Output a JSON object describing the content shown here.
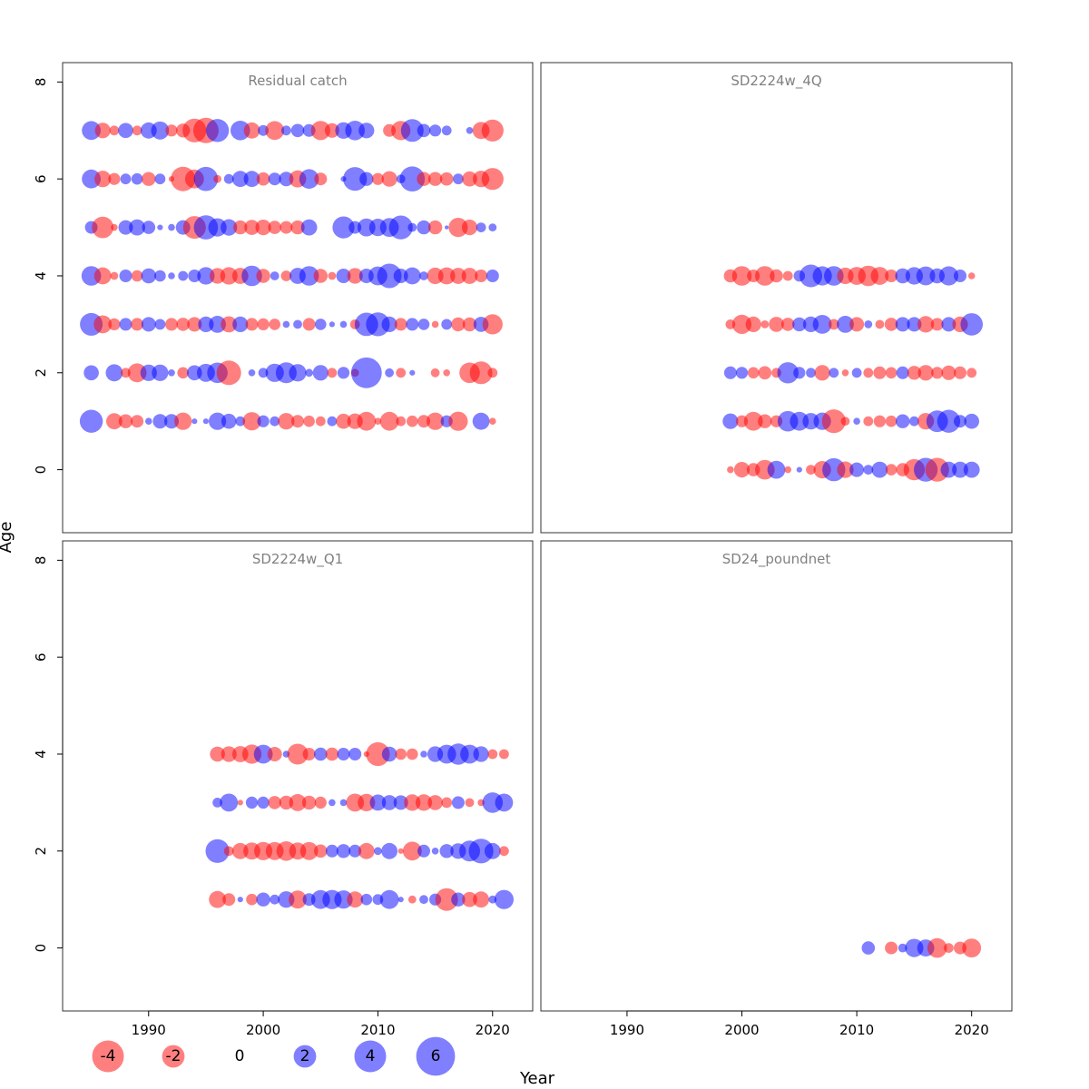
{
  "chart_data": {
    "type": "scatter",
    "subtype": "bubble",
    "xlabel": "Year",
    "ylabel": "Age",
    "xlim": [
      1982.5,
      2023.5
    ],
    "ylim": [
      -1.3,
      8.4
    ],
    "x_ticks": [
      "1990",
      "2000",
      "2010",
      "2020"
    ],
    "y_ticks": [
      "0",
      "2",
      "4",
      "6",
      "8"
    ],
    "colors": {
      "positive": "#0000ff",
      "negative": "#ff0000",
      "alpha": 0.5
    },
    "legend": {
      "placement": "bottom",
      "entries": [
        {
          "label": "-4",
          "value": -4
        },
        {
          "label": "-2",
          "value": -2
        },
        {
          "label": "0",
          "value": 0
        },
        {
          "label": "2",
          "value": 2
        },
        {
          "label": "4",
          "value": 4
        },
        {
          "label": "6",
          "value": 6
        }
      ]
    },
    "panels": [
      {
        "title": "Residual catch",
        "years": [
          1985,
          1986,
          1987,
          1988,
          1989,
          1990,
          1991,
          1992,
          1993,
          1994,
          1995,
          1996,
          1997,
          1998,
          1999,
          2000,
          2001,
          2002,
          2003,
          2004,
          2005,
          2006,
          2007,
          2008,
          2009,
          2010,
          2011,
          2012,
          2013,
          2014,
          2015,
          2016,
          2017,
          2018,
          2019,
          2020
        ],
        "ages": [
          {
            "age": 7,
            "values": [
              2.2,
              -1.5,
              -0.6,
              1.4,
              -0.6,
              1.6,
              2.0,
              -0.9,
              -1.2,
              -3.5,
              -4.0,
              3.3,
              0.0,
              2.4,
              -1.6,
              0.7,
              -2.2,
              0.6,
              1.1,
              1.0,
              -2.3,
              -1.3,
              1.7,
              2.4,
              1.5,
              0.0,
              -1.0,
              -2.3,
              3.2,
              1.1,
              0.9,
              0.6,
              0.0,
              0.3,
              -1.8,
              -3.0
            ]
          },
          {
            "age": 6,
            "values": [
              2.2,
              -1.7,
              -0.9,
              0.7,
              0.8,
              -1.2,
              0.7,
              -0.2,
              -3.7,
              -2.2,
              3.6,
              -0.4,
              0.6,
              1.6,
              1.6,
              -1.1,
              1.0,
              1.3,
              -1.8,
              2.4,
              -1.0,
              0.0,
              0.2,
              3.5,
              1.2,
              -0.9,
              -1.5,
              0.5,
              3.9,
              -1.2,
              -1.2,
              -1.1,
              0.7,
              -1.4,
              -1.7,
              -3.0
            ]
          },
          {
            "age": 5,
            "values": [
              1.0,
              -2.9,
              -0.3,
              1.3,
              1.6,
              1.1,
              0.2,
              0.3,
              1.3,
              -3.2,
              3.6,
              2.1,
              1.7,
              -1.2,
              -1.4,
              -1.5,
              -1.1,
              -1.0,
              -1.2,
              1.6,
              0.0,
              0.0,
              3.0,
              1.0,
              2.0,
              1.9,
              2.2,
              3.5,
              0.5,
              1.2,
              -1.2,
              0.1,
              -2.3,
              -1.5,
              0.6,
              0.4
            ]
          },
          {
            "age": 4,
            "values": [
              2.4,
              -1.8,
              -0.4,
              1.0,
              -0.8,
              1.4,
              0.8,
              0.3,
              0.6,
              1.0,
              1.9,
              -1.5,
              -1.9,
              -1.6,
              2.6,
              -1.2,
              0.5,
              -0.7,
              1.6,
              2.4,
              -1.2,
              -0.4,
              1.3,
              -1.5,
              1.3,
              2.2,
              3.7,
              1.3,
              1.8,
              0.5,
              -1.7,
              -1.8,
              -1.6,
              -1.6,
              -1.0,
              1.0
            ]
          },
          {
            "age": 3,
            "values": [
              3.2,
              -2.0,
              -0.9,
              1.0,
              -1.0,
              1.3,
              0.7,
              -1.0,
              -1.1,
              -1.3,
              1.5,
              1.8,
              -1.6,
              1.5,
              -1.0,
              -0.9,
              -0.8,
              0.3,
              0.5,
              -1.0,
              0.8,
              0.2,
              0.3,
              -0.6,
              3.4,
              3.5,
              1.5,
              -1.0,
              1.0,
              0.8,
              -0.3,
              0.7,
              -1.2,
              -1.2,
              1.4,
              -2.5
            ]
          },
          {
            "age": 2,
            "values": [
              1.4,
              0.0,
              1.8,
              -0.6,
              -2.2,
              1.7,
              1.7,
              0.3,
              -0.8,
              1.4,
              2.0,
              2.6,
              -3.7,
              0.0,
              0.3,
              0.6,
              2.1,
              2.7,
              1.9,
              0.4,
              1.5,
              -0.6,
              0.9,
              -0.4,
              5.8,
              0.0,
              0.5,
              -0.6,
              0.2,
              0.0,
              -0.5,
              -0.3,
              0.0,
              -2.6,
              -3.2,
              -0.6
            ]
          },
          {
            "age": 1,
            "values": [
              3.3,
              0.0,
              -1.6,
              -1.2,
              -1.0,
              0.3,
              1.3,
              1.3,
              -1.9,
              0.2,
              0.2,
              1.9,
              1.4,
              0.6,
              -2.1,
              0.9,
              0.6,
              -1.7,
              -1.0,
              -0.8,
              -0.6,
              0.6,
              -1.4,
              -1.5,
              -2.2,
              -0.3,
              -2.2,
              -0.6,
              -0.8,
              -1.0,
              -1.9,
              0.9,
              -2.3,
              0.0,
              1.8,
              -0.3
            ]
          }
        ]
      },
      {
        "title": "SD2224w_4Q",
        "years": [
          1999,
          2000,
          2001,
          2002,
          2003,
          2004,
          2005,
          2006,
          2007,
          2008,
          2009,
          2010,
          2011,
          2012,
          2013,
          2014,
          2015,
          2016,
          2017,
          2018,
          2019,
          2020
        ],
        "ages": [
          {
            "age": 4,
            "values": [
              -1.1,
              -2.4,
              -1.0,
              -2.4,
              -1.1,
              -0.6,
              0.8,
              3.2,
              2.3,
              2.4,
              -1.7,
              -2.0,
              -2.6,
              -2.0,
              -1.0,
              1.4,
              1.9,
              2.2,
              1.4,
              2.3,
              1.0,
              -0.3
            ]
          },
          {
            "age": 3,
            "values": [
              -0.6,
              -2.3,
              -1.5,
              -0.4,
              -1.4,
              -1.1,
              1.2,
              1.5,
              2.2,
              -0.7,
              1.8,
              -1.3,
              0.4,
              -0.5,
              -1.1,
              1.3,
              1.3,
              -1.7,
              -1.0,
              1.3,
              -1.5,
              3.1
            ]
          },
          {
            "age": 2,
            "values": [
              1.0,
              0.9,
              -0.8,
              -1.1,
              -0.6,
              2.8,
              0.9,
              0.6,
              -1.5,
              0.6,
              -0.3,
              0.6,
              -0.6,
              -1.0,
              -0.8,
              1.0,
              -1.2,
              -1.5,
              -0.9,
              -1.3,
              -1.0,
              -0.6
            ]
          },
          {
            "age": 1,
            "values": [
              1.5,
              -0.9,
              -2.2,
              -1.2,
              -0.9,
              2.6,
              2.2,
              1.7,
              1.9,
              -3.5,
              -0.5,
              0.3,
              -0.6,
              -0.9,
              -0.8,
              1.2,
              0.6,
              -1.7,
              2.9,
              3.3,
              1.0,
              1.4
            ]
          },
          {
            "age": 0,
            "values": [
              -0.3,
              -1.5,
              -1.1,
              -2.4,
              2.0,
              -0.3,
              0.2,
              -0.6,
              -1.9,
              3.3,
              -1.7,
              1.3,
              0.6,
              1.6,
              -0.8,
              -1.1,
              -2.8,
              3.5,
              -3.5,
              1.6,
              1.6,
              1.6
            ]
          }
        ]
      },
      {
        "title": "SD2224w_Q1",
        "years": [
          1996,
          1997,
          1998,
          1999,
          2000,
          2001,
          2002,
          2003,
          2004,
          2005,
          2006,
          2007,
          2008,
          2009,
          2010,
          2011,
          2012,
          2013,
          2014,
          2015,
          2016,
          2017,
          2018,
          2019,
          2020,
          2021
        ],
        "ages": [
          {
            "age": 4,
            "values": [
              -1.4,
              -1.5,
              -1.6,
              -2.3,
              2.2,
              -1.3,
              0.3,
              -2.7,
              -1.0,
              1.1,
              -1.1,
              1.0,
              1.0,
              -0.2,
              -3.5,
              1.4,
              -0.8,
              -0.8,
              0.3,
              1.5,
              2.2,
              2.8,
              2.2,
              1.5,
              -0.6,
              -0.6
            ]
          },
          {
            "age": 3,
            "values": [
              0.6,
              2.0,
              -0.2,
              0.9,
              0.9,
              -1.1,
              -1.2,
              -1.8,
              -1.2,
              -0.9,
              0.3,
              0.3,
              -2.0,
              -1.9,
              1.6,
              1.4,
              1.3,
              -1.7,
              -1.7,
              -1.4,
              -0.7,
              1.0,
              -0.5,
              -0.3,
              2.6,
              2.0
            ]
          },
          {
            "age": 2,
            "values": [
              3.5,
              -0.6,
              -1.6,
              -1.8,
              -2.1,
              -2.0,
              -2.4,
              -1.8,
              -2.0,
              -1.1,
              1.0,
              1.2,
              1.0,
              -1.6,
              0.4,
              1.6,
              -0.2,
              -2.2,
              1.0,
              0.3,
              1.2,
              1.5,
              2.7,
              3.8,
              1.6,
              -0.6
            ]
          },
          {
            "age": 1,
            "values": [
              -1.8,
              -1.0,
              0.2,
              -0.8,
              1.2,
              0.6,
              1.7,
              -2.0,
              1.0,
              2.2,
              2.3,
              2.1,
              -1.6,
              0.8,
              0.7,
              2.2,
              0.2,
              -0.4,
              0.5,
              0.9,
              -3.2,
              1.2,
              -1.4,
              -1.6,
              0.4,
              2.3
            ]
          }
        ]
      },
      {
        "title": "SD24_poundnet",
        "years": [
          2011,
          2012,
          2013,
          2014,
          2015,
          2016,
          2017,
          2018,
          2019,
          2020
        ],
        "ages": [
          {
            "age": 0,
            "values": [
              1.1,
              0.0,
              -1.0,
              0.5,
              2.1,
              1.8,
              -2.4,
              -0.6,
              -1.0,
              -2.2
            ]
          }
        ]
      }
    ]
  }
}
